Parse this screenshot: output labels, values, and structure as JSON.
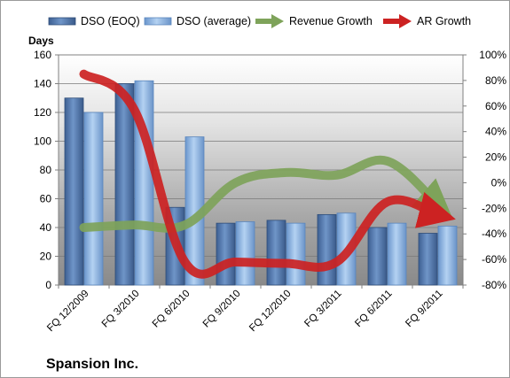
{
  "chart_data": {
    "type": "bar",
    "categories": [
      "FQ 12/2009",
      "FQ 3/2010",
      "FQ 6/2010",
      "FQ 9/2010",
      "FQ 12/2010",
      "FQ 3/2011",
      "FQ 6/2011",
      "FQ 9/2011"
    ],
    "series": [
      {
        "name": "DSO (EOQ)",
        "axis": "left",
        "kind": "bar",
        "color": "#5a7fb5",
        "values": [
          130,
          140,
          54,
          43,
          45,
          49,
          40,
          36
        ]
      },
      {
        "name": "DSO (average)",
        "axis": "left",
        "kind": "bar",
        "color": "#8eb4e0",
        "values": [
          120,
          142,
          103,
          44,
          43,
          50,
          43,
          41
        ]
      },
      {
        "name": "Revenue Growth",
        "axis": "right",
        "kind": "line",
        "color": "#7ea35a",
        "values": [
          -35,
          -33,
          -33,
          0,
          8,
          6,
          17,
          -17
        ]
      },
      {
        "name": "AR Growth",
        "axis": "right",
        "kind": "line",
        "color": "#cc2222",
        "values": [
          85,
          57,
          -62,
          -62,
          -63,
          -62,
          -15,
          -25
        ]
      }
    ],
    "y_left": {
      "label": "Days",
      "min": 0,
      "max": 160,
      "step": 20,
      "ticks": [
        "0",
        "20",
        "40",
        "60",
        "80",
        "100",
        "120",
        "140",
        "160"
      ]
    },
    "y_right": {
      "min": -80,
      "max": 100,
      "step": 20,
      "ticks": [
        "-80%",
        "-60%",
        "-40%",
        "-20%",
        "0%",
        "20%",
        "40%",
        "60%",
        "80%",
        "100%"
      ]
    },
    "grid": true,
    "legend_position": "top",
    "plot_background": "gradient",
    "footer": "Spansion Inc."
  }
}
